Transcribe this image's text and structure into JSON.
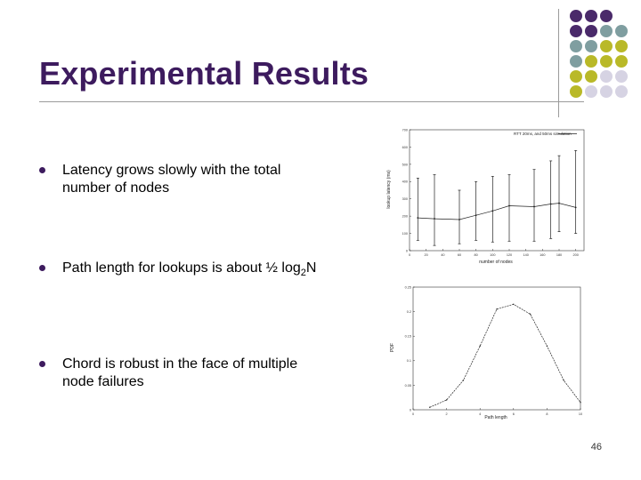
{
  "slide": {
    "title": "Experimental Results",
    "page_number": "46",
    "bullets": [
      {
        "text": "Latency grows slowly with the total number of nodes"
      },
      {
        "text_main": "Path length for lookups is about ½ log",
        "subscript": "2",
        "text_tail": "N"
      },
      {
        "text": "Chord is robust in the face of multiple node failures"
      }
    ],
    "decoration_colors": {
      "purple": "#4a2a6a",
      "teal": "#7f9ea0",
      "olive": "#b9b928",
      "lavender": "#d6d3e3"
    }
  },
  "chart_data": [
    {
      "type": "line",
      "title": "",
      "xlabel": "number of nodes",
      "ylabel": "lookup latency (ms)",
      "legend": "RTT 20ms, and 50ms simulation",
      "legend_position": "top-right",
      "xlim": [
        0,
        210
      ],
      "ylim": [
        0,
        700
      ],
      "x_ticks": [
        "0",
        "20",
        "40",
        "60",
        "80",
        "100",
        "120",
        "140",
        "160",
        "180",
        "200"
      ],
      "y_ticks": [
        "0",
        "100",
        "200",
        "300",
        "400",
        "500",
        "600",
        "700"
      ],
      "series": [
        {
          "x": [
            10,
            30,
            60,
            80,
            100,
            120,
            150,
            170,
            180,
            200
          ],
          "values": [
            190,
            185,
            180,
            205,
            230,
            260,
            255,
            270,
            275,
            250
          ],
          "err_low": [
            60,
            30,
            40,
            60,
            50,
            55,
            55,
            70,
            110,
            100
          ],
          "err_high": [
            420,
            440,
            350,
            400,
            430,
            440,
            470,
            520,
            550,
            580
          ]
        }
      ],
      "grid": false
    },
    {
      "type": "line",
      "title": "",
      "xlabel": "Path length",
      "ylabel": "PDF",
      "xlim": [
        0,
        10
      ],
      "ylim": [
        0,
        0.25
      ],
      "x_ticks": [
        "0",
        "2",
        "4",
        "6",
        "8",
        "10"
      ],
      "y_ticks": [
        "0",
        "0.05",
        "0.1",
        "0.15",
        "0.2",
        "0.25"
      ],
      "series": [
        {
          "x": [
            1,
            2,
            3,
            4,
            5,
            6,
            7,
            8,
            9,
            10
          ],
          "values": [
            0.005,
            0.02,
            0.06,
            0.13,
            0.205,
            0.215,
            0.195,
            0.13,
            0.06,
            0.015
          ]
        }
      ],
      "grid": false
    }
  ]
}
